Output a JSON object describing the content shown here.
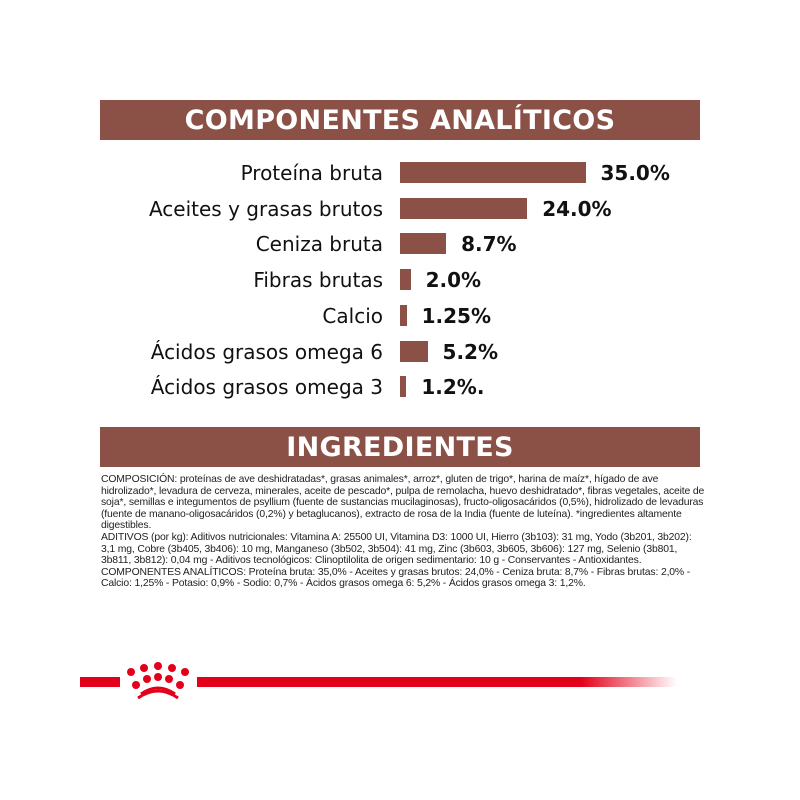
{
  "analytics": {
    "title": "COMPONENTES ANALÍTICOS",
    "bar_color": "#8b5046",
    "rows": [
      {
        "label": "Proteína bruta",
        "value": 35.0,
        "value_label": "35.0%"
      },
      {
        "label": "Aceites y grasas brutos",
        "value": 24.0,
        "value_label": "24.0%"
      },
      {
        "label": "Ceniza bruta",
        "value": 8.7,
        "value_label": "8.7%"
      },
      {
        "label": "Fibras brutas",
        "value": 2.0,
        "value_label": "2.0%"
      },
      {
        "label": "Calcio",
        "value": 1.25,
        "value_label": "1.25%"
      },
      {
        "label": "Ácidos grasos omega 6",
        "value": 5.2,
        "value_label": "5.2%"
      },
      {
        "label": "Ácidos grasos omega 3",
        "value": 1.2,
        "value_label": "1.2%."
      }
    ]
  },
  "ingredients": {
    "title": "INGREDIENTES",
    "composition": "COMPOSICIÓN: proteínas de ave deshidratadas*, grasas animales*, arroz*, gluten de trigo*, harina de maíz*, hígado de ave hidrolizado*, levadura de cerveza, minerales, aceite de pescado*, pulpa de remolacha, huevo deshidratado*, fibras vegetales, aceite de soja*, semillas e integumentos de psyllium (fuente de sustancias mucilaginosas), fructo-oligosacáridos (0,5%), hidrolizado de levaduras (fuente de manano-oligosacáridos (0,2%) y betaglucanos), extracto de rosa de la India (fuente de luteína). *ingredientes altamente digestibles.",
    "additives": "ADITIVOS (por kg): Aditivos nutricionales: Vitamina A: 25500 UI, Vitamina D3: 1000 UI, Hierro (3b103): 31 mg, Yodo (3b201, 3b202): 3,1 mg, Cobre (3b405, 3b406): 10 mg, Manganeso (3b502, 3b504): 41 mg, Zinc (3b603, 3b605, 3b606): 127 mg, Selenio (3b801, 3b811, 3b812): 0,04 mg - Aditivos tecnológicos: Clinoptilolita de origen sedimentario: 10 g - Conservantes - Antioxidantes.",
    "analytical": "COMPONENTES ANALÍTICOS: Proteína bruta: 35,0% - Aceites y grasas brutos: 24,0% - Ceniza bruta: 8,7% - Fibras brutas: 2,0% - Calcio: 1,25% - Potasio: 0,9% - Sodio: 0,7% - Ácidos grasos omega 6: 5,2% - Ácidos grasos omega 3: 1,2%."
  },
  "footer": {
    "logo": "royal-canin-crown",
    "accent": "#e2001a"
  }
}
